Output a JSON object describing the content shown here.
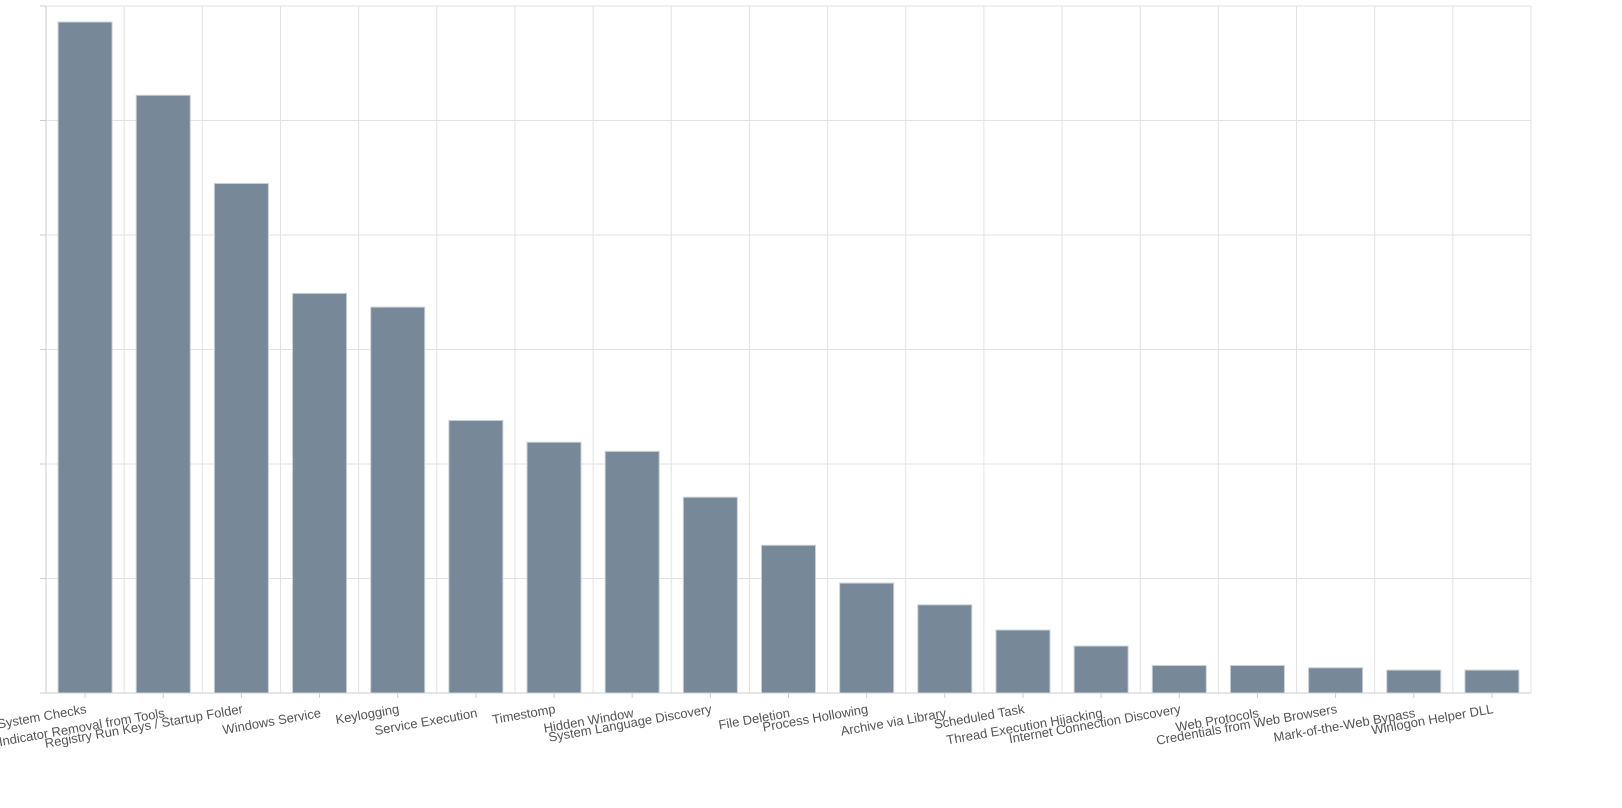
{
  "chart_data": {
    "type": "bar",
    "categories": [
      "System Checks",
      "Indicator Removal from Tools",
      "Registry Run Keys / Startup Folder",
      "Windows Service",
      "Keylogging",
      "Service Execution",
      "Timestomp",
      "Hidden Window",
      "System Language Discovery",
      "File Deletion",
      "Process Hollowing",
      "Archive via Library",
      "Scheduled Task",
      "Thread Execution Hijacking",
      "Internet Connection Discovery",
      "Web Protocols",
      "Credentials from Web Browsers",
      "Mark-of-the-Web Bypass",
      "Winlogon Helper DLL"
    ],
    "values": [
      586,
      522,
      445,
      349,
      337,
      238,
      219,
      211,
      171,
      129,
      96,
      77,
      55,
      41,
      24,
      24,
      22,
      20,
      20
    ],
    "color": "#778899",
    "ylim": [
      0,
      600
    ],
    "yticks": [
      0,
      100,
      200,
      300,
      400,
      500,
      600
    ],
    "grid": true
  }
}
